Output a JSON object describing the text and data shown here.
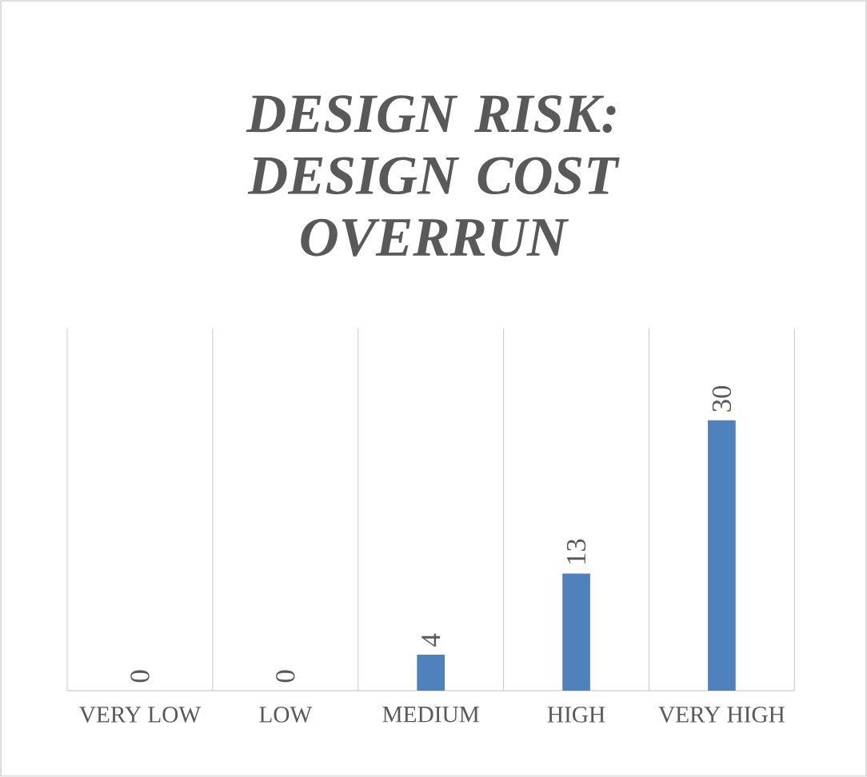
{
  "chart_data": {
    "type": "bar",
    "title": "DESIGN RISK: DESIGN COST OVERRUN",
    "categories": [
      "VERY LOW",
      "LOW",
      "MEDIUM",
      "HIGH",
      "VERY HIGH"
    ],
    "values": [
      0,
      0,
      4,
      13,
      30
    ],
    "color": "#4f81bd",
    "data_labels": true,
    "grid": "x"
  }
}
